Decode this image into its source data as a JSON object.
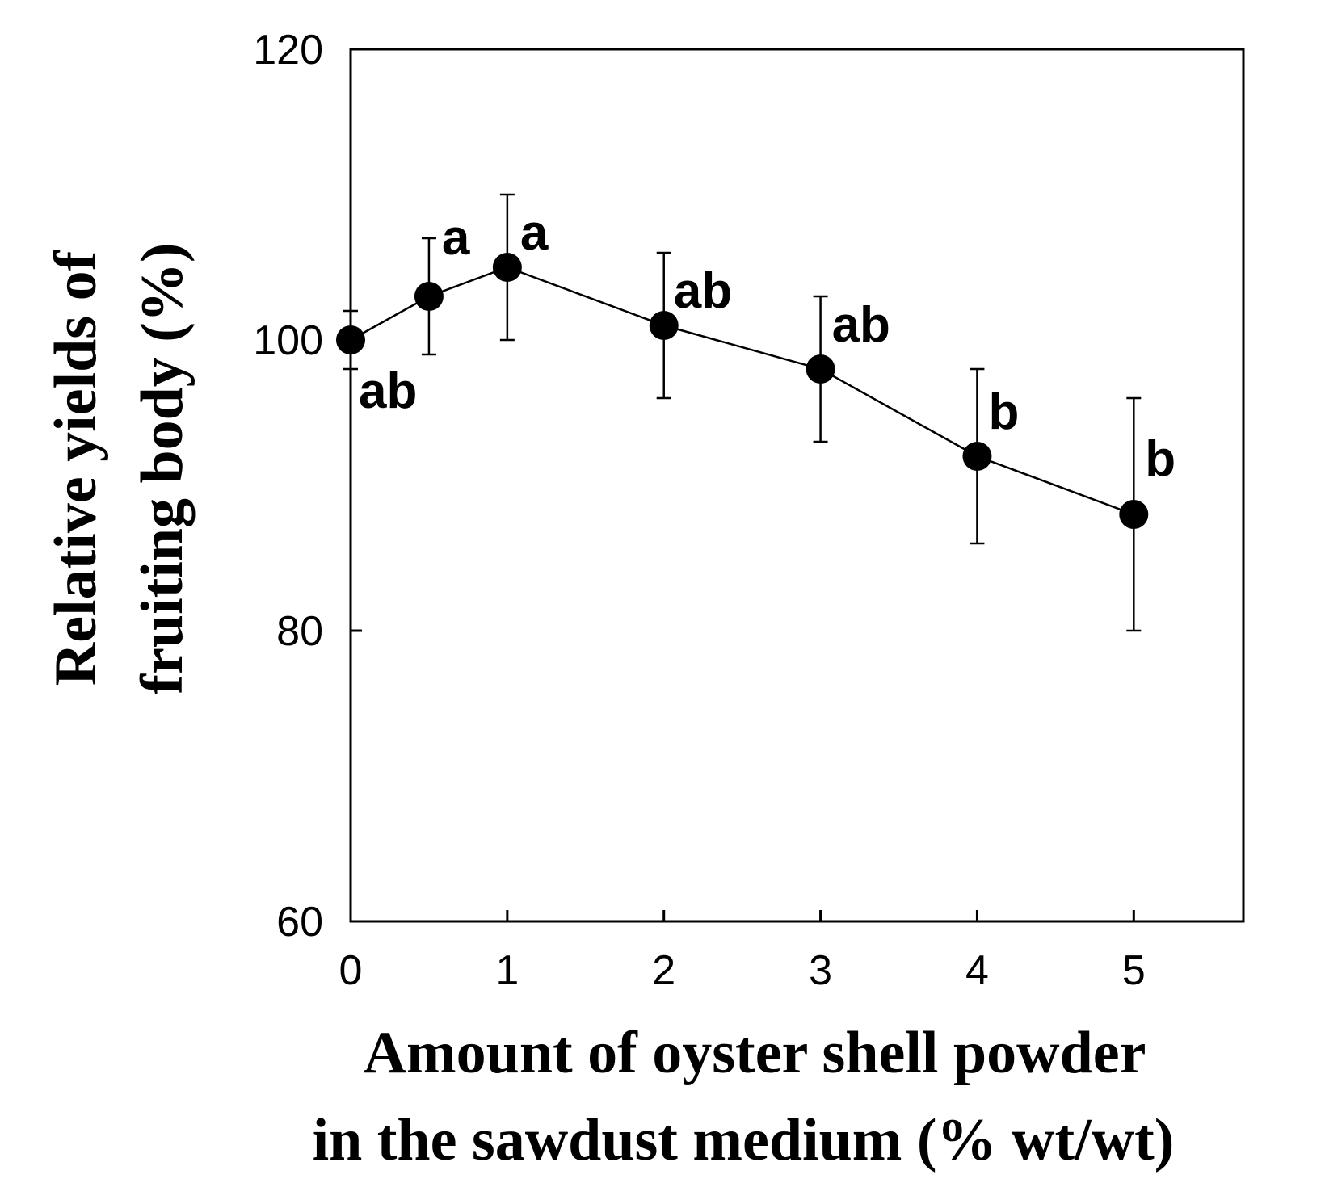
{
  "chart_data": {
    "type": "line",
    "title": "",
    "xlabel": [
      "Amount of oyster shell powder",
      "in the sawdust medium (% wt/wt)"
    ],
    "ylabel": [
      "Relative yields of",
      "fruiting body (%)"
    ],
    "xlim": [
      0,
      5.7
    ],
    "ylim": [
      60,
      120
    ],
    "xticks": [
      0,
      1,
      2,
      3,
      4,
      5
    ],
    "yticks": [
      60,
      80,
      100,
      120
    ],
    "grid": false,
    "legend": "none",
    "series": [
      {
        "name": "Relative yield",
        "x": [
          0,
          0.5,
          1,
          2,
          3,
          4,
          5
        ],
        "y": [
          100,
          103,
          105,
          101,
          98,
          92,
          88
        ],
        "error": [
          2,
          4,
          5,
          5,
          5,
          6,
          8
        ],
        "labels": [
          "ab",
          "a",
          "a",
          "ab",
          "ab",
          "b",
          "b"
        ],
        "color": "#000000"
      }
    ]
  }
}
